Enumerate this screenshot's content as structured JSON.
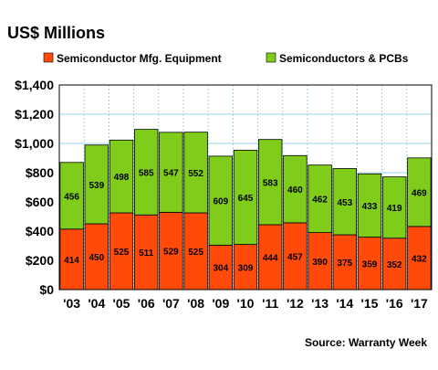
{
  "header": {
    "units_label": "US$ Millions"
  },
  "footer": {
    "source": "Source: Warranty Week"
  },
  "colors": {
    "series1": "#FF4A0A",
    "series2": "#80CC1A",
    "plot_bg": "#FFFFFF",
    "grid": "#9FD3E8"
  },
  "chart_data": {
    "type": "bar",
    "stacked": true,
    "title": "",
    "xlabel": "",
    "ylabel": "US$ Millions",
    "ylim": [
      0,
      1400
    ],
    "yticks": [
      0,
      200,
      400,
      600,
      800,
      1000,
      1200,
      1400
    ],
    "ytick_labels": [
      "$0",
      "$200",
      "$400",
      "$600",
      "$800",
      "$1,000",
      "$1,200",
      "$1,400"
    ],
    "grid": true,
    "legend_position": "top",
    "categories": [
      "'03",
      "'04",
      "'05",
      "'06",
      "'07",
      "'08",
      "'09",
      "'10",
      "'11",
      "'12",
      "'13",
      "'14",
      "'15",
      "'16",
      "'17"
    ],
    "series": [
      {
        "name": "Semiconductor Mfg. Equipment",
        "values": [
          414,
          450,
          525,
          511,
          529,
          525,
          304,
          309,
          444,
          457,
          390,
          375,
          359,
          352,
          432
        ]
      },
      {
        "name": "Semiconductors & PCBs",
        "values": [
          456,
          539,
          498,
          585,
          547,
          552,
          609,
          645,
          583,
          460,
          462,
          453,
          433,
          419,
          469
        ]
      }
    ]
  }
}
